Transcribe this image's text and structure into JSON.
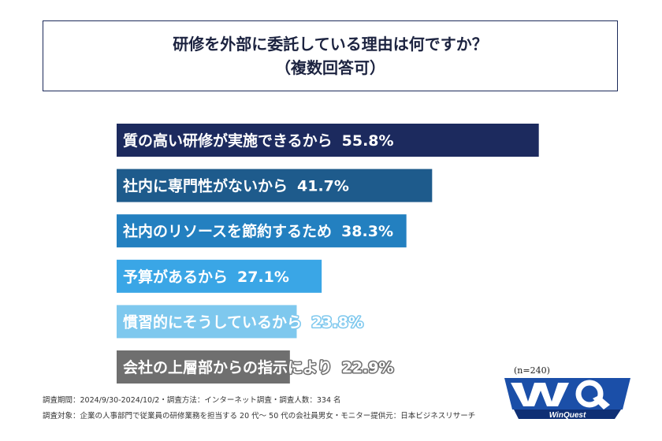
{
  "title": {
    "line1": "研修を外部に委託している理由は何ですか？",
    "line2": "（複数回答可）"
  },
  "sample_size": "(n=240)",
  "footnotes": {
    "line1": "調査期間：2024/9/30-2024/10/2・調査方法：インターネット調査・調査人数：334 名",
    "line2": "調査対象：企業の人事部門で従業員の研修業務を担当する 20 代～ 50 代の会社員男女・モニター提供元：日本ビジネスリサーチ"
  },
  "logo": {
    "text": "WinQuest",
    "mark": "WQ"
  },
  "chart_data": {
    "type": "bar",
    "orientation": "horizontal",
    "title": "研修を外部に委託している理由は何ですか？（複数回答可）",
    "unit": "%",
    "categories": [
      "質の高い研修が実施できるから",
      "社内に専門性がないから",
      "社内のリソースを節約するため",
      "予算があるから",
      "慣習的にそうしているから",
      "会社の上層部からの指示により"
    ],
    "values": [
      55.8,
      41.7,
      38.3,
      27.1,
      23.8,
      22.9
    ],
    "value_labels": [
      "55.8%",
      "41.7%",
      "38.3%",
      "27.1%",
      "23.8%",
      "22.9%"
    ],
    "colors": [
      "#1c2a5e",
      "#1e5b8c",
      "#2380c0",
      "#3aa6e6",
      "#7ec8ee",
      "#6f6f6f"
    ],
    "xlim": [
      0,
      100
    ]
  }
}
